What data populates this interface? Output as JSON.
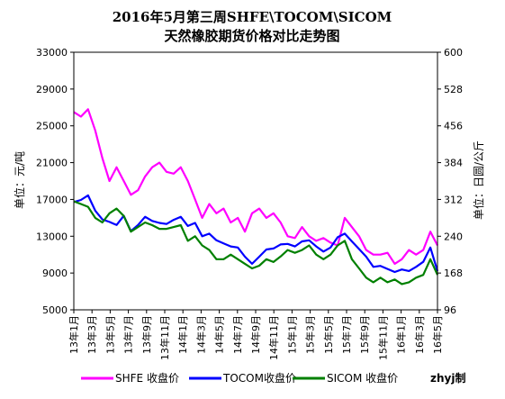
{
  "chart_data": {
    "type": "line",
    "title": "2016年5月第三周SHFE\\TOCOM\\SICOM",
    "subtitle": "天然橡胶期货价格对比走势图",
    "ylabel_left": "单位：元/吨",
    "ylabel_right": "单位：日圆/公斤",
    "ylim_left": [
      5000,
      33000
    ],
    "ylim_right": [
      96,
      600
    ],
    "yticks_left": [
      5000,
      9000,
      13000,
      17000,
      21000,
      25000,
      29000,
      33000
    ],
    "yticks_right": [
      96,
      168,
      240,
      312,
      384,
      456,
      528,
      600
    ],
    "x_ticks": [
      "13年1月",
      "13年3月",
      "13年5月",
      "13年7月",
      "13年9月",
      "13年11月",
      "14年1月",
      "14年3月",
      "14年5月",
      "14年7月",
      "14年9月",
      "14年11月",
      "15年1月",
      "15年3月",
      "15年5月",
      "15年7月",
      "15年9月",
      "15年11月",
      "16年1月",
      "16年3月",
      "16年5月"
    ],
    "grid": false,
    "legend_position": "bottom",
    "credit": "zhyj制",
    "series": [
      {
        "name": "SHFE 收盘价",
        "axis": "left",
        "color": "#ff00ff",
        "values": [
          26500,
          26000,
          26800,
          24500,
          21500,
          19000,
          20500,
          19000,
          17500,
          18000,
          19500,
          20500,
          21000,
          20000,
          19800,
          20500,
          19000,
          17000,
          15000,
          16500,
          15500,
          16000,
          14500,
          15000,
          13500,
          15500,
          16000,
          15000,
          15500,
          14500,
          13000,
          12800,
          14000,
          13000,
          12500,
          12800,
          12300,
          12000,
          15000,
          14000,
          13000,
          11500,
          11000,
          11000,
          11200,
          10000,
          10500,
          11500,
          11000,
          11500,
          13500,
          12000
        ]
      },
      {
        "name": "TOCOM收盘价",
        "axis": "right",
        "color": "#0000ff",
        "values": [
          307,
          311,
          320,
          290,
          273,
          268,
          262,
          280,
          250,
          262,
          278,
          270,
          266,
          264,
          272,
          278,
          260,
          266,
          240,
          245,
          232,
          226,
          220,
          218,
          200,
          186,
          200,
          214,
          216,
          224,
          225,
          220,
          230,
          232,
          220,
          210,
          218,
          238,
          245,
          230,
          215,
          200,
          180,
          182,
          176,
          170,
          175,
          172,
          180,
          190,
          218,
          172
        ]
      },
      {
        "name": "SICOM 收盘价",
        "axis": "left",
        "color": "#008000",
        "values": [
          16800,
          16500,
          16200,
          15000,
          14500,
          15500,
          16000,
          15200,
          13500,
          14000,
          14500,
          14200,
          13800,
          13800,
          14000,
          14200,
          12500,
          13000,
          12000,
          11500,
          10500,
          10500,
          11000,
          10500,
          10000,
          9500,
          9800,
          10500,
          10200,
          10800,
          11500,
          11200,
          11500,
          12000,
          11000,
          10500,
          11000,
          12000,
          12500,
          10500,
          9500,
          8500,
          8000,
          8500,
          8000,
          8300,
          7800,
          8000,
          8500,
          8800,
          10500,
          8800
        ]
      }
    ]
  }
}
